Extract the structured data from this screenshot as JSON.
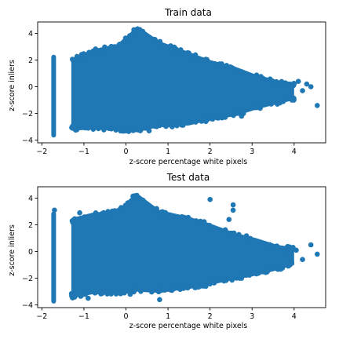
{
  "chart_data": [
    {
      "type": "scatter",
      "title": "Train data",
      "xlabel": "z-score percentage white pixels",
      "ylabel": "z-score inliers",
      "xlim": [
        -2.1,
        4.75
      ],
      "ylim": [
        -4.2,
        4.85
      ],
      "xticks": [
        -2,
        -1,
        0,
        1,
        2,
        3,
        4
      ],
      "yticks": [
        -4,
        -2,
        0,
        2,
        4
      ],
      "color": "#1f77b4",
      "grid": false,
      "legend": "none",
      "description_points": {
        "left_cluster_x": -1.72,
        "left_cluster_y_range": [
          -3.8,
          2.4
        ],
        "envelope": [
          {
            "x": -1.3,
            "top": 2.1,
            "bottom": -3.3
          },
          {
            "x": -0.8,
            "top": 2.8,
            "bottom": -3.2
          },
          {
            "x": -0.2,
            "top": 3.2,
            "bottom": -3.3
          },
          {
            "x": 0.28,
            "top": 4.55,
            "bottom": -3.4
          },
          {
            "x": 0.8,
            "top": 3.4,
            "bottom": -3.0
          },
          {
            "x": 1.5,
            "top": 2.6,
            "bottom": -2.9
          },
          {
            "x": 2.0,
            "top": 2.0,
            "bottom": -2.5
          },
          {
            "x": 2.6,
            "top": 1.5,
            "bottom": -2.2
          },
          {
            "x": 3.1,
            "top": 0.9,
            "bottom": -1.7
          },
          {
            "x": 3.6,
            "top": 0.5,
            "bottom": -1.3
          },
          {
            "x": 4.0,
            "top": 0.3,
            "bottom": -1.0
          }
        ],
        "outliers": [
          [
            3.4,
            0.3
          ],
          [
            3.55,
            0.25
          ],
          [
            3.7,
            -0.1
          ],
          [
            3.85,
            -0.2
          ],
          [
            4.0,
            0.2
          ],
          [
            4.1,
            0.4
          ],
          [
            4.2,
            -0.3
          ],
          [
            4.3,
            0.2
          ],
          [
            4.4,
            0.0
          ],
          [
            4.55,
            -1.4
          ],
          [
            3.95,
            -1.0
          ],
          [
            3.6,
            -1.3
          ],
          [
            2.75,
            -2.2
          ],
          [
            1.9,
            -2.6
          ],
          [
            1.1,
            -3.0
          ],
          [
            0.55,
            -3.3
          ],
          [
            -0.55,
            -3.0
          ],
          [
            -0.9,
            -3.1
          ]
        ]
      }
    },
    {
      "type": "scatter",
      "title": "Test data",
      "xlabel": "z-score percentage white pixels",
      "ylabel": "z-score inliers",
      "xlim": [
        -2.1,
        4.75
      ],
      "ylim": [
        -4.2,
        4.85
      ],
      "xticks": [
        -2,
        -1,
        0,
        1,
        2,
        3,
        4
      ],
      "yticks": [
        -4,
        -2,
        0,
        2,
        4
      ],
      "color": "#1f77b4",
      "grid": false,
      "legend": "none",
      "description_points": {
        "left_cluster_x": -1.72,
        "left_cluster_y_range": [
          -3.9,
          3.0
        ],
        "envelope": [
          {
            "x": -1.3,
            "top": 2.5,
            "bottom": -3.5
          },
          {
            "x": -0.8,
            "top": 2.9,
            "bottom": -3.2
          },
          {
            "x": -0.2,
            "top": 3.1,
            "bottom": -3.2
          },
          {
            "x": 0.25,
            "top": 4.4,
            "bottom": -3.0
          },
          {
            "x": 0.8,
            "top": 3.1,
            "bottom": -3.1
          },
          {
            "x": 1.5,
            "top": 2.6,
            "bottom": -2.8
          },
          {
            "x": 2.0,
            "top": 2.1,
            "bottom": -2.5
          },
          {
            "x": 2.6,
            "top": 1.4,
            "bottom": -2.1
          },
          {
            "x": 3.1,
            "top": 1.0,
            "bottom": -1.8
          },
          {
            "x": 3.6,
            "top": 0.5,
            "bottom": -1.4
          },
          {
            "x": 4.0,
            "top": 0.3,
            "bottom": -1.0
          }
        ],
        "outliers": [
          [
            2.0,
            3.9
          ],
          [
            2.55,
            3.5
          ],
          [
            2.55,
            3.1
          ],
          [
            2.45,
            2.4
          ],
          [
            3.5,
            0.1
          ],
          [
            3.8,
            -0.2
          ],
          [
            4.05,
            0.1
          ],
          [
            4.2,
            -0.6
          ],
          [
            4.4,
            0.5
          ],
          [
            4.55,
            -0.2
          ],
          [
            3.9,
            -1.0
          ],
          [
            3.6,
            -1.3
          ],
          [
            2.75,
            -2.0
          ],
          [
            1.9,
            -2.6
          ],
          [
            0.8,
            -3.6
          ],
          [
            0.1,
            -3.2
          ],
          [
            -0.9,
            -3.5
          ],
          [
            -1.7,
            3.1
          ],
          [
            -1.1,
            2.9
          ]
        ]
      }
    }
  ]
}
